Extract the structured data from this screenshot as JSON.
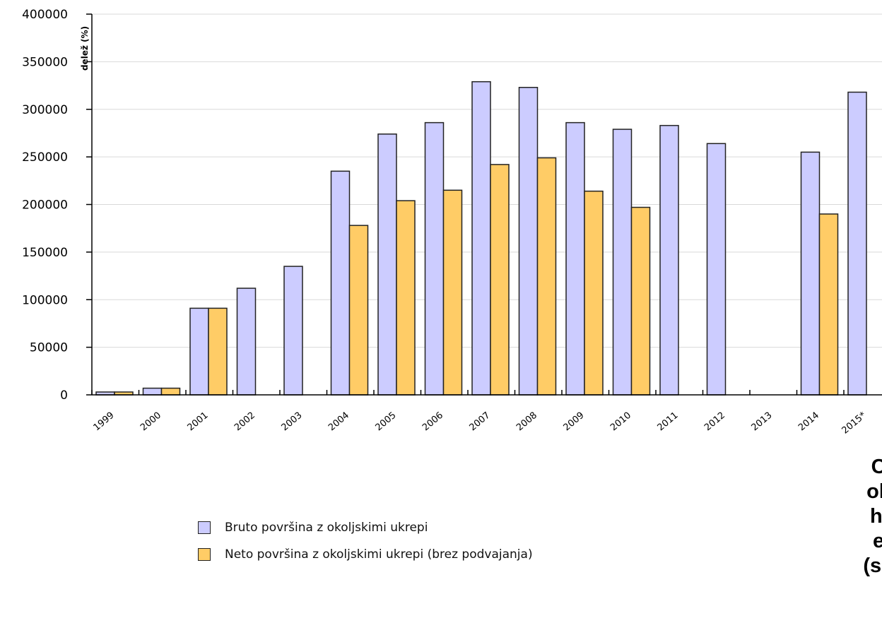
{
  "chart_data": {
    "type": "bar",
    "ylabel": "delež (%)",
    "ylim": [
      0,
      400000
    ],
    "yticks": [
      0,
      50000,
      100000,
      150000,
      200000,
      250000,
      300000,
      350000,
      400000
    ],
    "categories": [
      "1999",
      "2000",
      "2001",
      "2002",
      "2003",
      "2004",
      "2005",
      "2006",
      "2007",
      "2008",
      "2009",
      "2010",
      "2011",
      "2012",
      "2013",
      "2014",
      "2015*"
    ],
    "series": [
      {
        "name": "Bruto površina z okoljskimi ukrepi",
        "color": "#ccccff",
        "values": [
          3000,
          7000,
          91000,
          112000,
          135000,
          235000,
          274000,
          286000,
          329000,
          323000,
          286000,
          279000,
          283000,
          264000,
          null,
          255000,
          318000
        ]
      },
      {
        "name": "Neto površina z okoljskimi ukrepi (brez podvajanja)",
        "color": "#ffcc66",
        "values": [
          3000,
          7000,
          91000,
          null,
          null,
          178000,
          204000,
          215000,
          242000,
          249000,
          214000,
          197000,
          null,
          null,
          null,
          190000,
          null
        ]
      }
    ],
    "grid": true,
    "legend": "bottom-left"
  },
  "side_note": {
    "lines": [
      "Cilj:",
      "okolj",
      "ha k",
      "eko",
      "(skup"
    ]
  }
}
